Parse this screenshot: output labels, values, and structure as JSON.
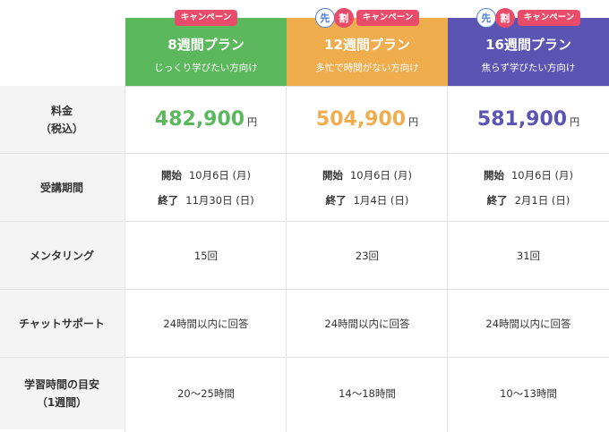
{
  "rows": {
    "price": "料金\n（税込）",
    "period": "受講期間",
    "mentoring": "メンタリング",
    "chat": "チャットサポート",
    "study": "学習時間の目安\n（1週間）"
  },
  "campaign_label": "キャンペーン",
  "sen_label": "先",
  "wari_label": "割",
  "start_label": "開始",
  "end_label": "終了",
  "yen": "円",
  "plans": [
    {
      "name": "8週間プラン",
      "sub": "じっくり学びたい方向け",
      "price": "482,900",
      "start": "10月6日 (月)",
      "end": "11月30日 (日)",
      "mentoring": "15回",
      "chat": "24時間以内に回答",
      "study": "20〜25時間",
      "early": false,
      "color": "#5cb85c"
    },
    {
      "name": "12週間プラン",
      "sub": "多忙で時間がない方向け",
      "price": "504,900",
      "start": "10月6日 (月)",
      "end": "1月4日 (日)",
      "mentoring": "23回",
      "chat": "24時間以内に回答",
      "study": "14〜18時間",
      "early": true,
      "color": "#f0ad4e"
    },
    {
      "name": "16週間プラン",
      "sub": "焦らず学びたい方向け",
      "price": "581,900",
      "start": "10月6日 (月)",
      "end": "2月1日 (日)",
      "mentoring": "31回",
      "chat": "24時間以内に回答",
      "study": "10〜13時間",
      "early": true,
      "color": "#5b54b2"
    }
  ]
}
